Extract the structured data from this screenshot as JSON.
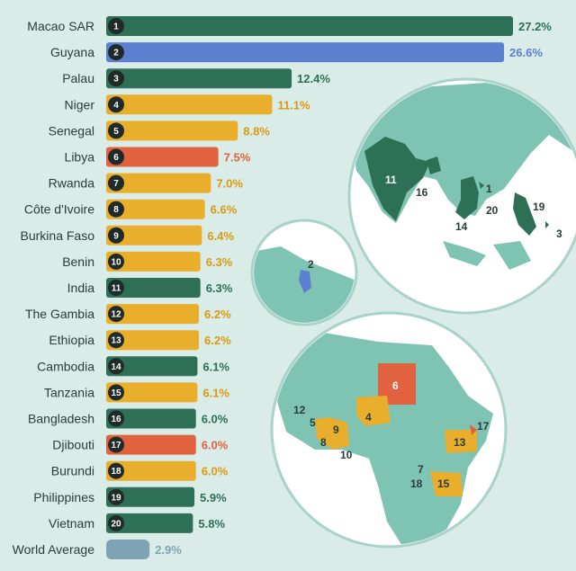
{
  "chart_data": {
    "type": "bar",
    "orientation": "horizontal",
    "title": "",
    "xlabel": "",
    "ylabel": "",
    "xlim": [
      0,
      27.2
    ],
    "grid": false,
    "categories": [
      "Macao SAR",
      "Guyana",
      "Palau",
      "Niger",
      "Senegal",
      "Libya",
      "Rwanda",
      "Côte d'Ivoire",
      "Burkina Faso",
      "Benin",
      "India",
      "The Gambia",
      "Ethiopia",
      "Cambodia",
      "Tanzania",
      "Bangladesh",
      "Djibouti",
      "Burundi",
      "Philippines",
      "Vietnam"
    ],
    "values": [
      27.2,
      26.6,
      12.4,
      11.1,
      8.8,
      7.5,
      7.0,
      6.6,
      6.4,
      6.3,
      6.3,
      6.2,
      6.2,
      6.1,
      6.1,
      6.0,
      6.0,
      6.0,
      5.9,
      5.8
    ],
    "labels": [
      "27.2%",
      "26.6%",
      "12.4%",
      "11.1%",
      "8.8%",
      "7.5%",
      "7.0%",
      "6.6%",
      "6.4%",
      "6.3%",
      "6.3%",
      "6.2%",
      "6.2%",
      "6.1%",
      "6.1%",
      "6.0%",
      "6.0%",
      "6.0%",
      "5.9%",
      "5.8%"
    ],
    "ranks": [
      "1",
      "2",
      "3",
      "4",
      "5",
      "6",
      "7",
      "8",
      "9",
      "10",
      "11",
      "12",
      "13",
      "14",
      "15",
      "16",
      "17",
      "18",
      "19",
      "20"
    ],
    "bar_colors": [
      "#2e7055",
      "#5d7fcf",
      "#2e7055",
      "#e8ae2c",
      "#e8ae2c",
      "#e0623f",
      "#e8ae2c",
      "#e8ae2c",
      "#e8ae2c",
      "#e8ae2c",
      "#2e7055",
      "#e8ae2c",
      "#e8ae2c",
      "#2e7055",
      "#e8ae2c",
      "#2e7055",
      "#e0623f",
      "#e8ae2c",
      "#2e7055",
      "#2e7055"
    ],
    "label_colors": [
      "#2e7055",
      "#5d7fcf",
      "#2e7055",
      "#d99a12",
      "#d99a12",
      "#e0623f",
      "#d99a12",
      "#d99a12",
      "#d99a12",
      "#d99a12",
      "#2e7055",
      "#d99a12",
      "#d99a12",
      "#2e7055",
      "#d99a12",
      "#2e7055",
      "#e0623f",
      "#d99a12",
      "#2e7055",
      "#2e7055"
    ],
    "reference": {
      "name": "World Average",
      "value": 2.9,
      "label": "2.9%",
      "color": "#7fa3b4"
    }
  },
  "maps": {
    "asia_labels": [
      "11",
      "16",
      "1",
      "20",
      "14",
      "19",
      "3"
    ],
    "guyana_labels": [
      "2"
    ],
    "africa_labels": [
      "6",
      "12",
      "5",
      "4",
      "9",
      "8",
      "10",
      "13",
      "17",
      "7",
      "18",
      "15"
    ]
  },
  "colors": {
    "background": "#d9ece7",
    "sea": "#ffffff",
    "land": "#7fc4b3",
    "green": "#2e7055",
    "blue": "#5d7fcf",
    "yellow": "#e8ae2c",
    "red": "#e0623f"
  }
}
